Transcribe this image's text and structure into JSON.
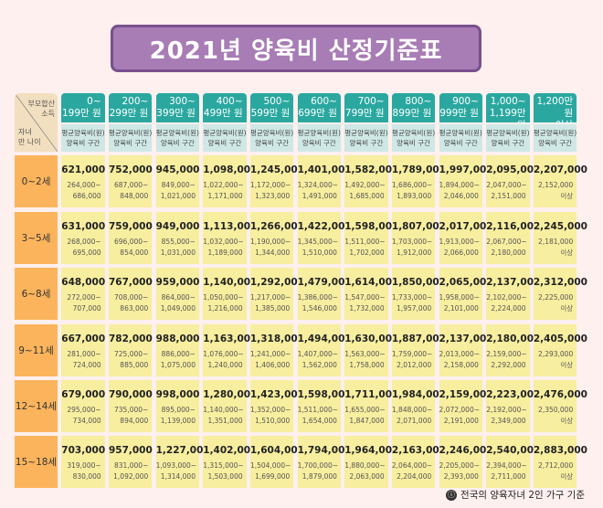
{
  "title": "2021년 양육비 산정기준표",
  "corner": {
    "top": "부모합산\n소득",
    "bottom": "자녀\n만 나이"
  },
  "columns": [
    {
      "income": "0~\n199만 원",
      "sub": "평균양육비(원)\n양육비 구간"
    },
    {
      "income": "200~\n299만 원",
      "sub": "평균양육비(원)\n양육비 구간"
    },
    {
      "income": "300~\n399만 원",
      "sub": "평균양육비(원)\n양육비 구간"
    },
    {
      "income": "400~\n499만 원",
      "sub": "평균양육비(원)\n양육비 구간"
    },
    {
      "income": "500~\n599만 원",
      "sub": "평균양육비(원)\n양육비 구간"
    },
    {
      "income": "600~\n699만 원",
      "sub": "평균양육비(원)\n양육비 구간"
    },
    {
      "income": "700~\n799만 원",
      "sub": "평균양육비(원)\n양육비 구간"
    },
    {
      "income": "800~\n899만 원",
      "sub": "평균양육비(원)\n양육비 구간"
    },
    {
      "income": "900~\n999만 원",
      "sub": "평균양육비(원)\n양육비 구간"
    },
    {
      "income": "1,000~\n1,199만 원",
      "sub": "평균양육비(원)\n양육비 구간"
    },
    {
      "income": "1,200만 원\n이상",
      "sub": "평균양육비(원)\n양육비 구간"
    }
  ],
  "rows": [
    {
      "age": "0~2세",
      "cells": [
        [
          "621,000",
          "264,000~\n686,000"
        ],
        [
          "752,000",
          "687,000~\n848,000"
        ],
        [
          "945,000",
          "849,000~\n1,021,000"
        ],
        [
          "1,098,000",
          "1,022,000~\n1,171,000"
        ],
        [
          "1,245,000",
          "1,172,000~\n1,323,000"
        ],
        [
          "1,401,000",
          "1,324,000~\n1,491,000"
        ],
        [
          "1,582,000",
          "1,492,000~\n1,685,000"
        ],
        [
          "1,789,000",
          "1,686,000~\n1,893,000"
        ],
        [
          "1,997,000",
          "1,894,000~\n2,046,000"
        ],
        [
          "2,095,000",
          "2,047,000~\n2,151,000"
        ],
        [
          "2,207,000",
          "2,152,000\n이상"
        ]
      ]
    },
    {
      "age": "3~5세",
      "cells": [
        [
          "631,000",
          "268,000~\n695,000"
        ],
        [
          "759,000",
          "696,000~\n854,000"
        ],
        [
          "949,000",
          "855,000~\n1,031,000"
        ],
        [
          "1,113,000",
          "1,032,000~\n1,189,000"
        ],
        [
          "1,266,000",
          "1,190,000~\n1,344,000"
        ],
        [
          "1,422,000",
          "1,345,000~\n1,510,000"
        ],
        [
          "1,598,000",
          "1,511,000~\n1,702,000"
        ],
        [
          "1,807,000",
          "1,703,000~\n1,912,000"
        ],
        [
          "2,017,000",
          "1,913,000~\n2,066,000"
        ],
        [
          "2,116,000",
          "2,067,000~\n2,180,000"
        ],
        [
          "2,245,000",
          "2,181,000\n이상"
        ]
      ]
    },
    {
      "age": "6~8세",
      "cells": [
        [
          "648,000",
          "272,000~\n707,000"
        ],
        [
          "767,000",
          "708,000~\n863,000"
        ],
        [
          "959,000",
          "864,000~\n1,049,000"
        ],
        [
          "1,140,000",
          "1,050,000~\n1,216,000"
        ],
        [
          "1,292,000",
          "1,217,000~\n1,385,000"
        ],
        [
          "1,479,000",
          "1,386,000~\n1,546,000"
        ],
        [
          "1,614,000",
          "1,547,000~\n1,732,000"
        ],
        [
          "1,850,000",
          "1,733,000~\n1,957,000"
        ],
        [
          "2,065,000",
          "1,958,000~\n2,101,000"
        ],
        [
          "2,137,000",
          "2,102,000~\n2,224,000"
        ],
        [
          "2,312,000",
          "2,225,000\n이상"
        ]
      ]
    },
    {
      "age": "9~11세",
      "cells": [
        [
          "667,000",
          "281,000~\n724,000"
        ],
        [
          "782,000",
          "725,000~\n885,000"
        ],
        [
          "988,000",
          "886,000~\n1,075,000"
        ],
        [
          "1,163,000",
          "1,076,000~\n1,240,000"
        ],
        [
          "1,318,000",
          "1,241,000~\n1,406,000"
        ],
        [
          "1,494,000",
          "1,407,000~\n1,562,000"
        ],
        [
          "1,630,000",
          "1,563,000~\n1,758,000"
        ],
        [
          "1,887,000",
          "1,759,000~\n2,012,000"
        ],
        [
          "2,137,000",
          "2,013,000~\n2,158,000"
        ],
        [
          "2,180,000",
          "2,159,000~\n2,292,000"
        ],
        [
          "2,405,000",
          "2,293,000\n이상"
        ]
      ]
    },
    {
      "age": "12~14세",
      "cells": [
        [
          "679,000",
          "295,000~\n734,000"
        ],
        [
          "790,000",
          "735,000~\n894,000"
        ],
        [
          "998,000",
          "895,000~\n1,139,000"
        ],
        [
          "1,280,000",
          "1,140,000~\n1,351,000"
        ],
        [
          "1,423,000",
          "1,352,000~\n1,510,000"
        ],
        [
          "1,598,000",
          "1,511,000~\n1,654,000"
        ],
        [
          "1,711,000",
          "1,655,000~\n1,847,000"
        ],
        [
          "1,984,000",
          "1,848,000~\n2,071,000"
        ],
        [
          "2,159,000",
          "2,072,000~\n2,191,000"
        ],
        [
          "2,223,000",
          "2,192,000~\n2,349,000"
        ],
        [
          "2,476,000",
          "2,350,000\n이상"
        ]
      ]
    },
    {
      "age": "15~18세",
      "cells": [
        [
          "703,000",
          "319,000~\n830,000"
        ],
        [
          "957,000",
          "831,000~\n1,092,000"
        ],
        [
          "1,227,000",
          "1,093,000~\n1,314,000"
        ],
        [
          "1,402,000",
          "1,315,000~\n1,503,000"
        ],
        [
          "1,604,000",
          "1,504,000~\n1,699,000"
        ],
        [
          "1,794,000",
          "1,700,000~\n1,879,000"
        ],
        [
          "1,964,000",
          "1,880,000~\n2,063,000"
        ],
        [
          "2,163,000",
          "2,064,000~\n2,204,000"
        ],
        [
          "2,246,000",
          "2,205,000~\n2,393,000"
        ],
        [
          "2,540,000",
          "2,394,000~\n2,711,000"
        ],
        [
          "2,883,000",
          "2,712,000\n이상"
        ]
      ]
    }
  ],
  "footer": {
    "mark": "ⓘ",
    "text": "전국의 양육자녀 2인 가구 기준"
  }
}
